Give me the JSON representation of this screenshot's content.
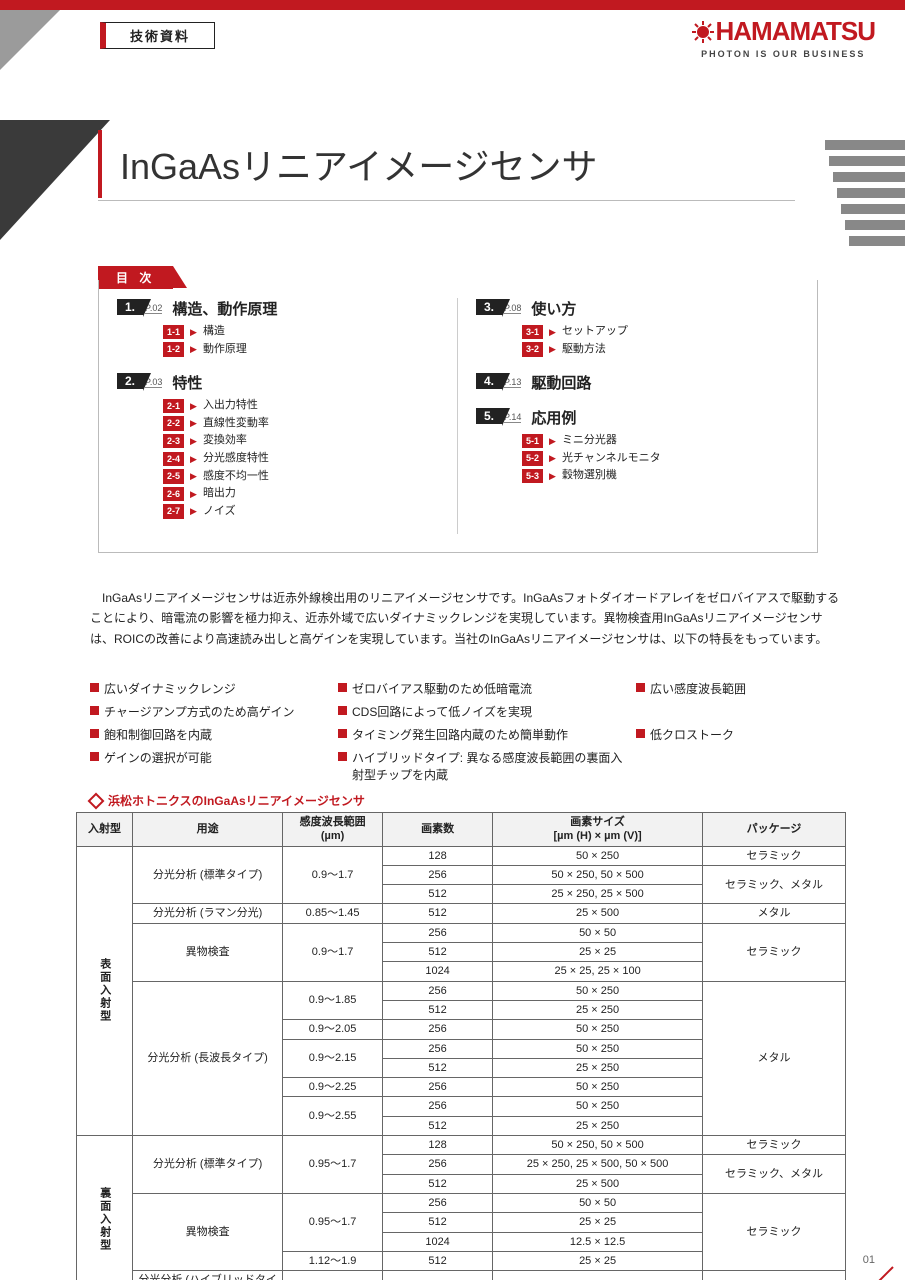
{
  "header": {
    "doclabel": "技術資料",
    "brand": "HAMAMATSU",
    "tagline": "PHOTON IS OUR BUSINESS"
  },
  "title": "InGaAsリニアイメージセンサ",
  "toc": {
    "heading": "目 次",
    "left": [
      {
        "num": "1.",
        "page": "P.02",
        "title": "構造、動作原理",
        "items": [
          {
            "tag": "1-1",
            "label": "構造"
          },
          {
            "tag": "1-2",
            "label": "動作原理"
          }
        ]
      },
      {
        "num": "2.",
        "page": "P.03",
        "title": "特性",
        "items": [
          {
            "tag": "2-1",
            "label": "入出力特性"
          },
          {
            "tag": "2-2",
            "label": "直線性変動率"
          },
          {
            "tag": "2-3",
            "label": "変換効率"
          },
          {
            "tag": "2-4",
            "label": "分光感度特性"
          },
          {
            "tag": "2-5",
            "label": "感度不均一性"
          },
          {
            "tag": "2-6",
            "label": "暗出力"
          },
          {
            "tag": "2-7",
            "label": "ノイズ"
          }
        ]
      }
    ],
    "right": [
      {
        "num": "3.",
        "page": "P.08",
        "title": "使い方",
        "items": [
          {
            "tag": "3-1",
            "label": "セットアップ"
          },
          {
            "tag": "3-2",
            "label": "駆動方法"
          }
        ]
      },
      {
        "num": "4.",
        "page": "P.13",
        "title": "駆動回路",
        "items": []
      },
      {
        "num": "5.",
        "page": "P.14",
        "title": "応用例",
        "items": [
          {
            "tag": "5-1",
            "label": "ミニ分光器"
          },
          {
            "tag": "5-2",
            "label": "光チャンネルモニタ"
          },
          {
            "tag": "5-3",
            "label": "穀物選別機"
          }
        ]
      }
    ]
  },
  "intro": "InGaAsリニアイメージセンサは近赤外線検出用のリニアイメージセンサです。InGaAsフォトダイオードアレイをゼロバイアスで駆動することにより、暗電流の影響を極力抑え、近赤外域で広いダイナミックレンジを実現しています。異物検査用InGaAsリニアイメージセンサは、ROICの改善により高速読み出しと高ゲインを実現しています。当社のInGaAsリニアイメージセンサは、以下の特長をもっています。",
  "features": [
    "広いダイナミックレンジ",
    "ゼロバイアス駆動のため低暗電流",
    "広い感度波長範囲",
    "チャージアンプ方式のため高ゲイン",
    "CDS回路によって低ノイズを実現",
    "",
    "飽和制御回路を内蔵",
    "タイミング発生回路内蔵のため簡単動作",
    "低クロストーク",
    "ゲインの選択が可能",
    "ハイブリッドタイプ: 異なる感度波長範囲の裏面入射型チップを内蔵",
    ""
  ],
  "table": {
    "title": "浜松ホトニクスのInGaAsリニアイメージセンサ",
    "columns": [
      "入射型",
      "用途",
      "感度波長範囲\n(µm)",
      "画素数",
      "画素サイズ\n[µm (H) × µm (V)]",
      "パッケージ"
    ]
  },
  "pagenum": "01"
}
